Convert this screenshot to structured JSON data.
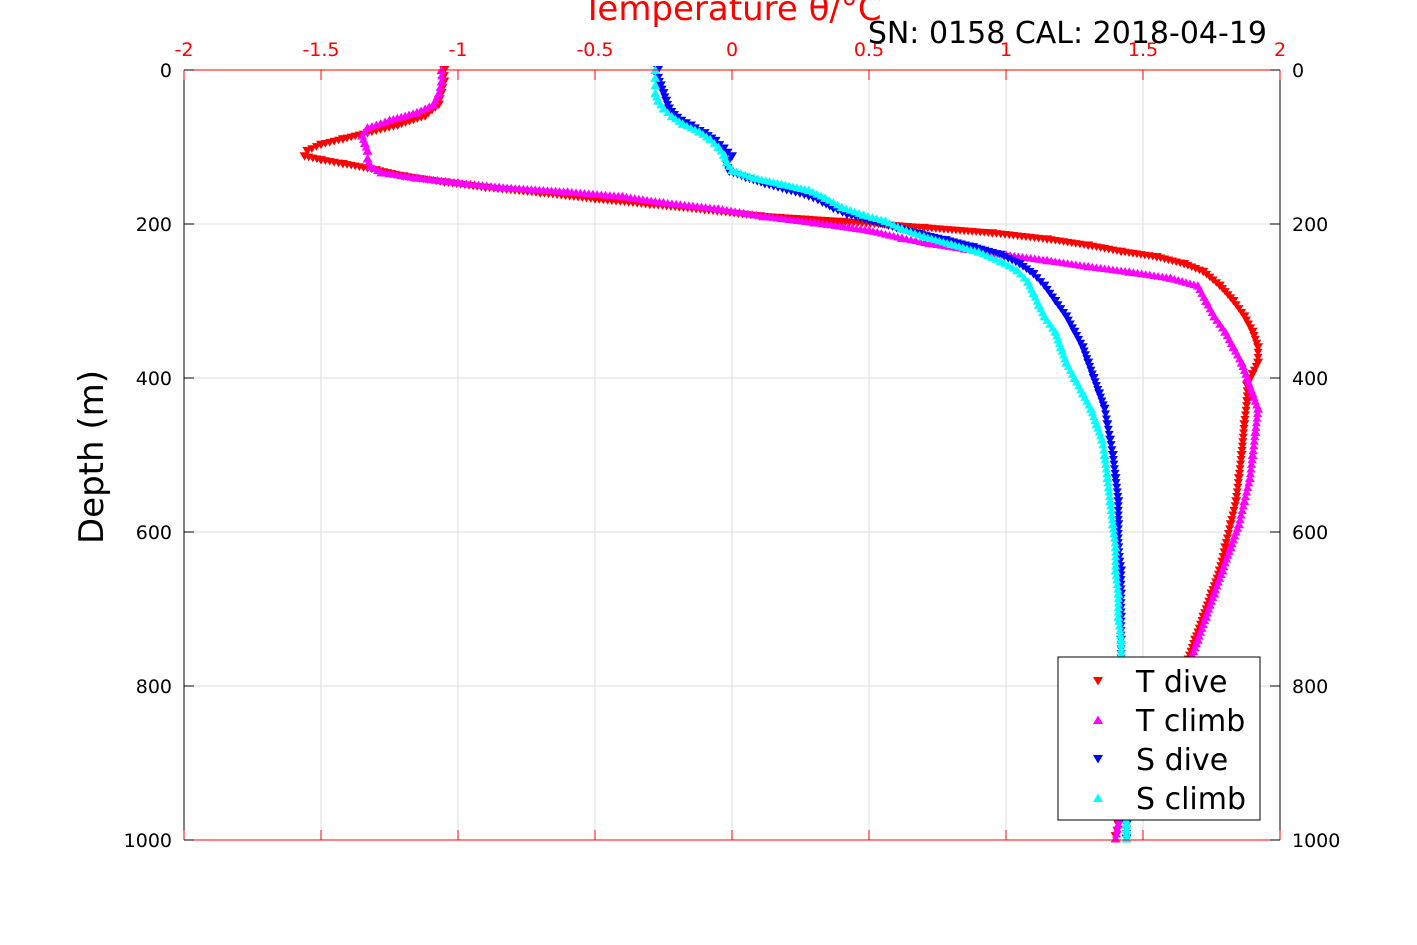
{
  "header": {
    "serial_text": "SN: 0158  CAL: 2018-04-19"
  },
  "colors": {
    "t_dive": "#ff0000",
    "t_climb": "#ff00ff",
    "s_dive": "#0000ff",
    "s_climb": "#00ffff",
    "temperature_axis": "#ff0000",
    "depth_axis": "#000000",
    "grid": "#dddddd"
  },
  "chart_data": {
    "type": "scatter",
    "title": "",
    "xlabel": "Temperature θ/°C",
    "ylabel": "Depth (m)",
    "xlim": [
      -2,
      2
    ],
    "ylim": [
      0,
      1000
    ],
    "y_reversed": true,
    "x_ticks": [
      -2,
      -1.5,
      -1,
      -0.5,
      0,
      0.5,
      1,
      1.5,
      2
    ],
    "x_tick_labels": [
      "-2",
      "-1.5",
      "-1",
      "-0.5",
      "0",
      "0.5",
      "1",
      "1.5",
      "2"
    ],
    "y_ticks": [
      0,
      200,
      400,
      600,
      800,
      1000
    ],
    "y_tick_labels": [
      "0",
      "200",
      "400",
      "600",
      "800",
      "1000"
    ],
    "grid": true,
    "legend_position": "bottom-right",
    "series": [
      {
        "name": "T dive",
        "marker": "triangle-down",
        "color": "#ff0000",
        "points": [
          [
            -1.05,
            0
          ],
          [
            -1.05,
            15
          ],
          [
            -1.06,
            30
          ],
          [
            -1.07,
            45
          ],
          [
            -1.12,
            60
          ],
          [
            -1.22,
            72
          ],
          [
            -1.33,
            82
          ],
          [
            -1.42,
            90
          ],
          [
            -1.5,
            97
          ],
          [
            -1.55,
            105
          ],
          [
            -1.56,
            112
          ],
          [
            -1.5,
            117
          ],
          [
            -1.42,
            122
          ],
          [
            -1.3,
            130
          ],
          [
            -1.2,
            138
          ],
          [
            -1.05,
            146
          ],
          [
            -0.9,
            153
          ],
          [
            -0.7,
            160
          ],
          [
            -0.5,
            168
          ],
          [
            -0.3,
            175
          ],
          [
            -0.1,
            182
          ],
          [
            0.1,
            190
          ],
          [
            0.4,
            197
          ],
          [
            0.7,
            205
          ],
          [
            0.95,
            212
          ],
          [
            1.15,
            220
          ],
          [
            1.3,
            228
          ],
          [
            1.42,
            236
          ],
          [
            1.55,
            243
          ],
          [
            1.65,
            252
          ],
          [
            1.72,
            262
          ],
          [
            1.78,
            280
          ],
          [
            1.83,
            300
          ],
          [
            1.87,
            320
          ],
          [
            1.9,
            340
          ],
          [
            1.92,
            360
          ],
          [
            1.92,
            380
          ],
          [
            1.9,
            395
          ],
          [
            1.88,
            410
          ],
          [
            1.88,
            430
          ],
          [
            1.87,
            460
          ],
          [
            1.86,
            500
          ],
          [
            1.85,
            530
          ],
          [
            1.84,
            560
          ],
          [
            1.82,
            590
          ],
          [
            1.8,
            620
          ],
          [
            1.78,
            650
          ],
          [
            1.75,
            680
          ],
          [
            1.72,
            710
          ],
          [
            1.69,
            740
          ],
          [
            1.66,
            770
          ],
          [
            1.62,
            800
          ],
          [
            1.57,
            830
          ],
          [
            1.53,
            860
          ],
          [
            1.5,
            890
          ],
          [
            1.47,
            920
          ],
          [
            1.44,
            950
          ],
          [
            1.41,
            980
          ],
          [
            1.4,
            995
          ]
        ]
      },
      {
        "name": "T climb",
        "marker": "triangle-up",
        "color": "#ff00ff",
        "points": [
          [
            -1.06,
            0
          ],
          [
            -1.06,
            15
          ],
          [
            -1.07,
            30
          ],
          [
            -1.09,
            45
          ],
          [
            -1.15,
            55
          ],
          [
            -1.25,
            65
          ],
          [
            -1.33,
            75
          ],
          [
            -1.35,
            85
          ],
          [
            -1.34,
            95
          ],
          [
            -1.33,
            105
          ],
          [
            -1.33,
            115
          ],
          [
            -1.32,
            125
          ],
          [
            -1.28,
            133
          ],
          [
            -1.15,
            140
          ],
          [
            -1.0,
            146
          ],
          [
            -0.85,
            152
          ],
          [
            -0.6,
            158
          ],
          [
            -0.4,
            164
          ],
          [
            -0.25,
            172
          ],
          [
            -0.05,
            180
          ],
          [
            0.12,
            190
          ],
          [
            0.3,
            198
          ],
          [
            0.5,
            208
          ],
          [
            0.62,
            218
          ],
          [
            0.72,
            225
          ],
          [
            0.85,
            232
          ],
          [
            1.0,
            240
          ],
          [
            1.15,
            247
          ],
          [
            1.3,
            255
          ],
          [
            1.45,
            262
          ],
          [
            1.6,
            270
          ],
          [
            1.7,
            280
          ],
          [
            1.73,
            300
          ],
          [
            1.76,
            320
          ],
          [
            1.8,
            340
          ],
          [
            1.83,
            360
          ],
          [
            1.86,
            380
          ],
          [
            1.88,
            400
          ],
          [
            1.9,
            420
          ],
          [
            1.92,
            440
          ],
          [
            1.91,
            470
          ],
          [
            1.9,
            500
          ],
          [
            1.89,
            530
          ],
          [
            1.87,
            560
          ],
          [
            1.85,
            590
          ],
          [
            1.82,
            620
          ],
          [
            1.79,
            650
          ],
          [
            1.76,
            680
          ],
          [
            1.73,
            710
          ],
          [
            1.7,
            740
          ],
          [
            1.67,
            770
          ],
          [
            1.63,
            800
          ],
          [
            1.58,
            830
          ],
          [
            1.54,
            860
          ],
          [
            1.5,
            890
          ],
          [
            1.46,
            920
          ],
          [
            1.43,
            950
          ],
          [
            1.41,
            980
          ],
          [
            1.4,
            998
          ]
        ]
      },
      {
        "name": "S dive",
        "marker": "triangle-down",
        "color": "#0000ff",
        "points": [
          [
            -0.27,
            0
          ],
          [
            -0.27,
            10
          ],
          [
            -0.26,
            20
          ],
          [
            -0.25,
            30
          ],
          [
            -0.24,
            40
          ],
          [
            -0.23,
            50
          ],
          [
            -0.2,
            62
          ],
          [
            -0.15,
            72
          ],
          [
            -0.1,
            82
          ],
          [
            -0.06,
            92
          ],
          [
            -0.03,
            102
          ],
          [
            0.0,
            112
          ],
          [
            -0.02,
            122
          ],
          [
            -0.01,
            132
          ],
          [
            0.05,
            140
          ],
          [
            0.12,
            148
          ],
          [
            0.2,
            156
          ],
          [
            0.28,
            164
          ],
          [
            0.33,
            172
          ],
          [
            0.37,
            180
          ],
          [
            0.42,
            188
          ],
          [
            0.5,
            196
          ],
          [
            0.6,
            205
          ],
          [
            0.68,
            213
          ],
          [
            0.78,
            221
          ],
          [
            0.88,
            230
          ],
          [
            0.98,
            240
          ],
          [
            1.05,
            252
          ],
          [
            1.1,
            265
          ],
          [
            1.14,
            280
          ],
          [
            1.18,
            300
          ],
          [
            1.22,
            320
          ],
          [
            1.25,
            340
          ],
          [
            1.28,
            360
          ],
          [
            1.3,
            380
          ],
          [
            1.32,
            400
          ],
          [
            1.34,
            420
          ],
          [
            1.36,
            440
          ],
          [
            1.37,
            460
          ],
          [
            1.38,
            480
          ],
          [
            1.39,
            500
          ],
          [
            1.4,
            530
          ],
          [
            1.41,
            560
          ],
          [
            1.41,
            590
          ],
          [
            1.41,
            620
          ],
          [
            1.42,
            650
          ],
          [
            1.42,
            680
          ],
          [
            1.42,
            710
          ],
          [
            1.42,
            740
          ],
          [
            1.42,
            770
          ],
          [
            1.42,
            800
          ],
          [
            1.43,
            830
          ],
          [
            1.43,
            860
          ],
          [
            1.43,
            890
          ],
          [
            1.43,
            920
          ],
          [
            1.43,
            950
          ],
          [
            1.44,
            980
          ],
          [
            1.44,
            998
          ]
        ]
      },
      {
        "name": "S climb",
        "marker": "triangle-up",
        "color": "#00ffff",
        "points": [
          [
            -0.28,
            0
          ],
          [
            -0.28,
            10
          ],
          [
            -0.28,
            20
          ],
          [
            -0.28,
            30
          ],
          [
            -0.27,
            40
          ],
          [
            -0.25,
            50
          ],
          [
            -0.22,
            60
          ],
          [
            -0.18,
            70
          ],
          [
            -0.12,
            80
          ],
          [
            -0.08,
            90
          ],
          [
            -0.05,
            100
          ],
          [
            -0.03,
            110
          ],
          [
            -0.02,
            120
          ],
          [
            0.0,
            130
          ],
          [
            0.08,
            140
          ],
          [
            0.18,
            148
          ],
          [
            0.28,
            156
          ],
          [
            0.34,
            166
          ],
          [
            0.4,
            178
          ],
          [
            0.48,
            188
          ],
          [
            0.56,
            196
          ],
          [
            0.62,
            206
          ],
          [
            0.7,
            216
          ],
          [
            0.8,
            226
          ],
          [
            0.9,
            236
          ],
          [
            0.98,
            248
          ],
          [
            1.04,
            260
          ],
          [
            1.08,
            275
          ],
          [
            1.1,
            290
          ],
          [
            1.12,
            305
          ],
          [
            1.14,
            320
          ],
          [
            1.18,
            340
          ],
          [
            1.2,
            360
          ],
          [
            1.22,
            380
          ],
          [
            1.25,
            400
          ],
          [
            1.28,
            420
          ],
          [
            1.31,
            440
          ],
          [
            1.33,
            460
          ],
          [
            1.35,
            480
          ],
          [
            1.36,
            500
          ],
          [
            1.37,
            530
          ],
          [
            1.38,
            560
          ],
          [
            1.39,
            590
          ],
          [
            1.4,
            620
          ],
          [
            1.4,
            650
          ],
          [
            1.41,
            680
          ],
          [
            1.41,
            710
          ],
          [
            1.42,
            740
          ],
          [
            1.42,
            770
          ],
          [
            1.42,
            800
          ],
          [
            1.43,
            830
          ],
          [
            1.43,
            860
          ],
          [
            1.43,
            890
          ],
          [
            1.43,
            920
          ],
          [
            1.43,
            950
          ],
          [
            1.44,
            980
          ],
          [
            1.44,
            998
          ]
        ]
      }
    ]
  }
}
